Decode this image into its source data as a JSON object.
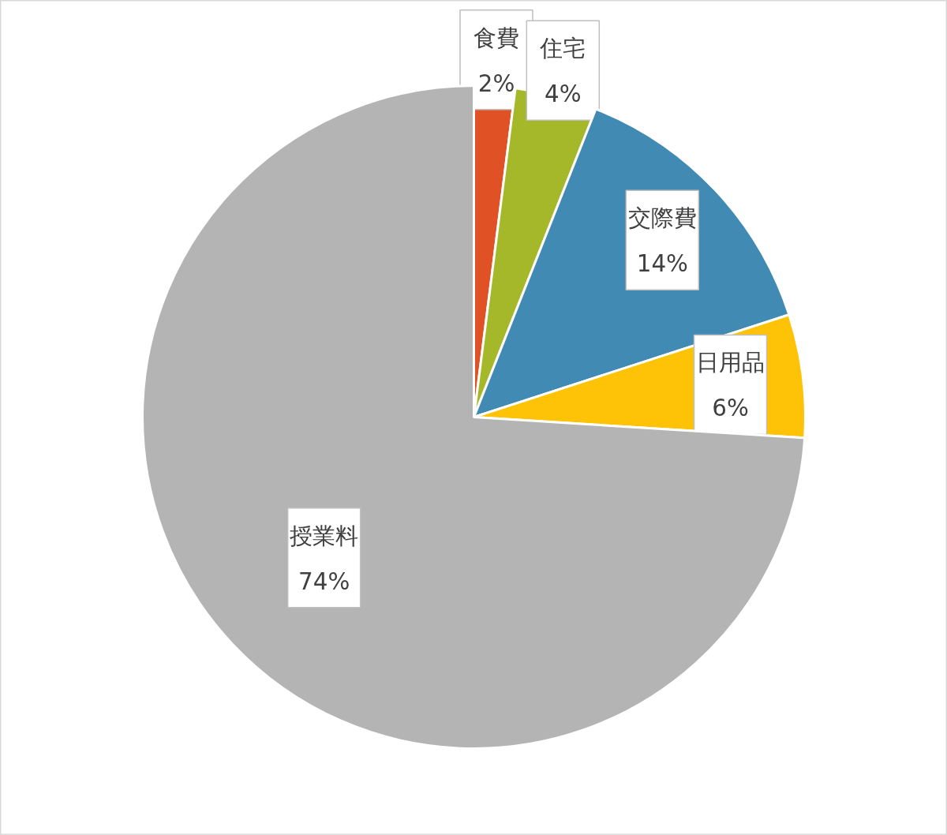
{
  "chart_data": {
    "type": "pie",
    "categories": [
      "食費",
      "住宅",
      "交際費",
      "日用品",
      "授業料"
    ],
    "values": [
      2,
      4,
      14,
      6,
      74
    ],
    "value_labels": [
      "2%",
      "4%",
      "14%",
      "6%",
      "74%"
    ],
    "colors": [
      "#e05226",
      "#a5b82a",
      "#418ab3",
      "#fec306",
      "#b4b4b4"
    ],
    "legend": false
  }
}
